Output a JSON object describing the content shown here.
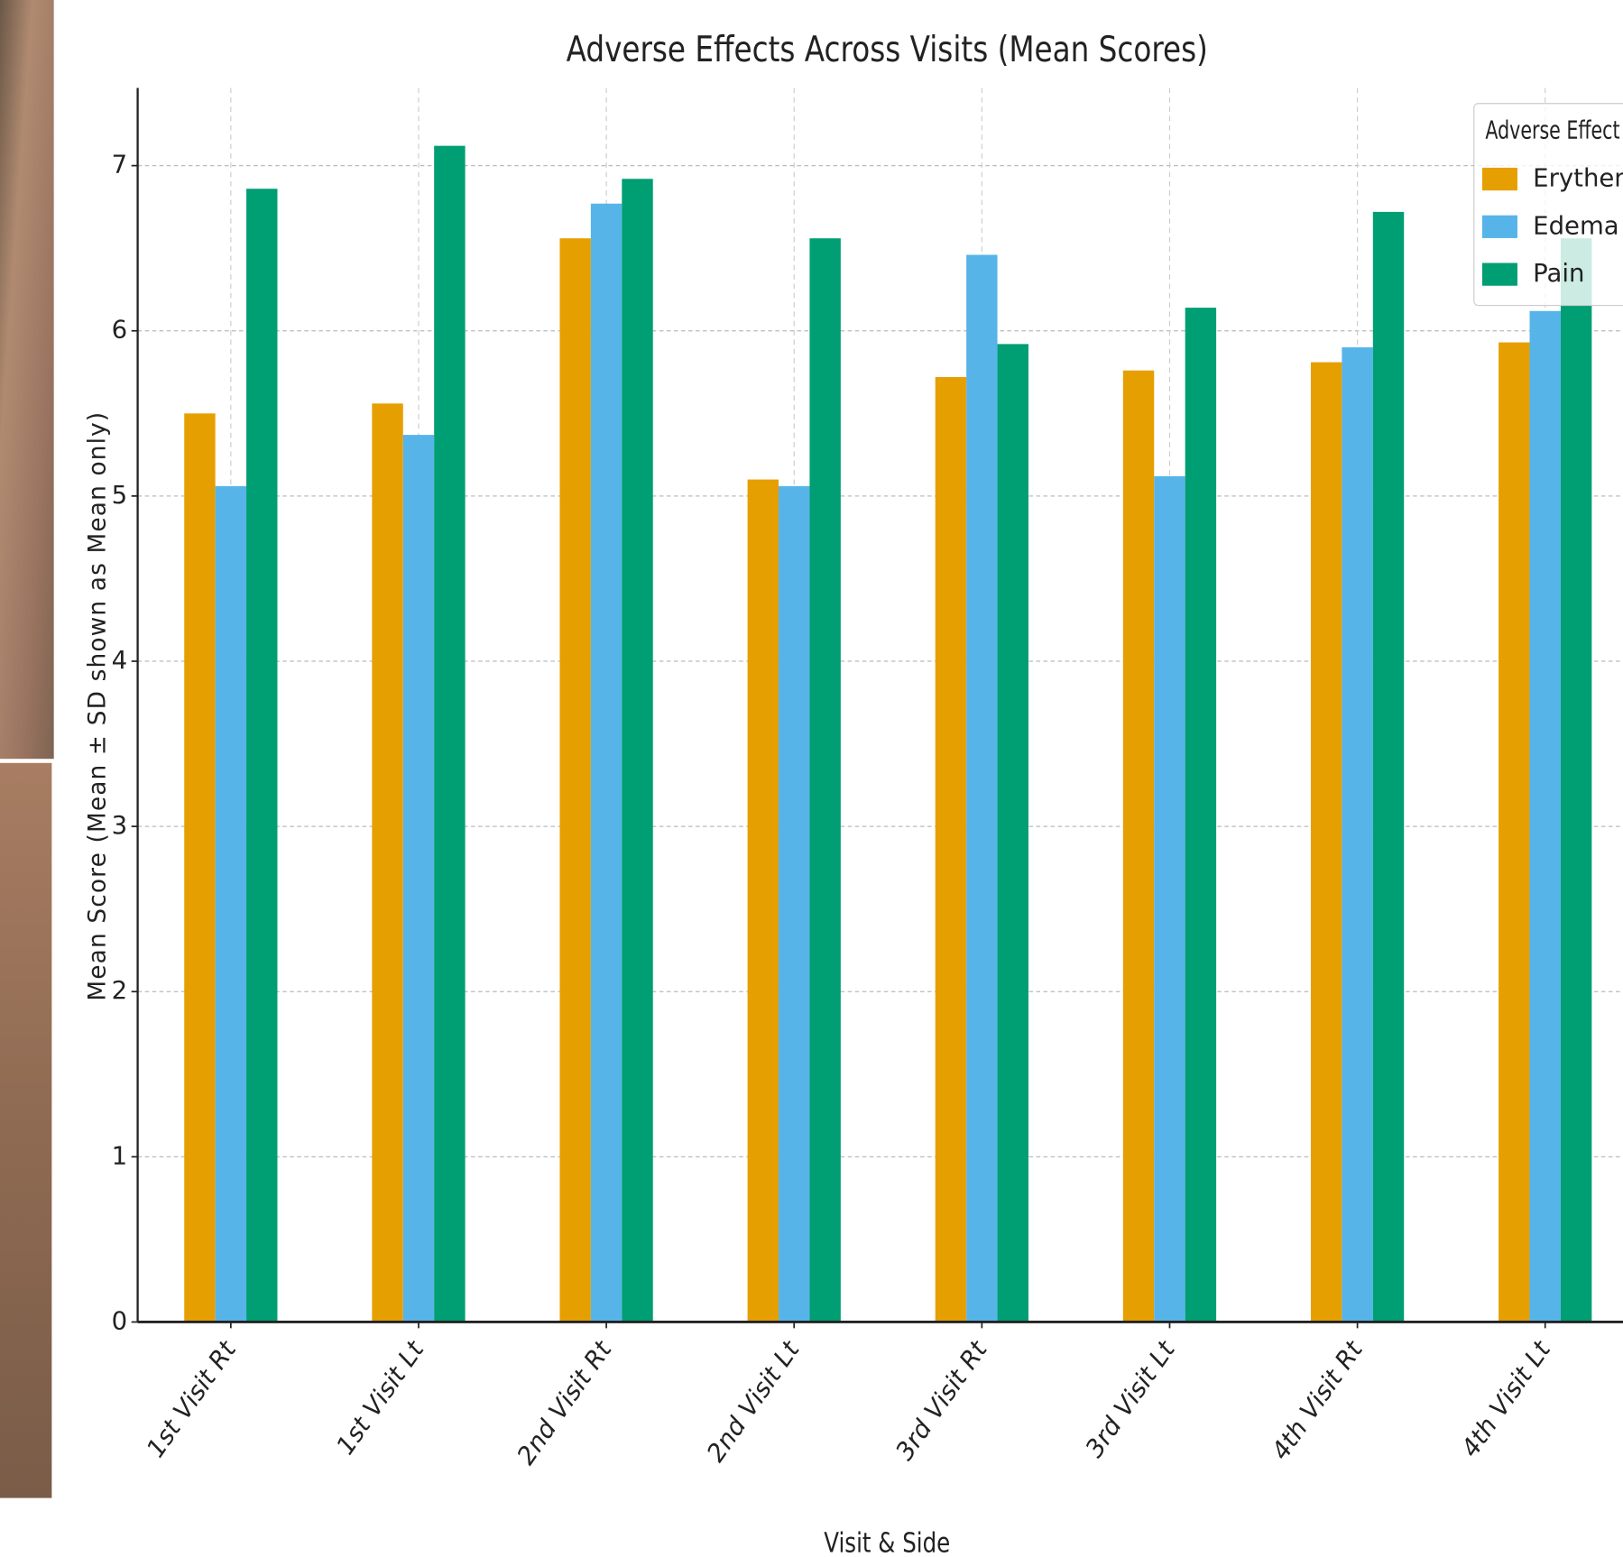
{
  "chart_data": {
    "type": "bar",
    "title": "Adverse Effects Across Visits (Mean Scores)",
    "x_label": "Visit & Side",
    "y_label": "Mean Score (Mean ± SD shown as Mean only)",
    "categories": [
      "1st Visit Rt",
      "1st Visit Lt",
      "2nd Visit Rt",
      "2nd Visit Lt",
      "3rd Visit Rt",
      "3rd Visit Lt",
      "4th Visit Rt",
      "4th Visit Lt"
    ],
    "series": [
      {
        "name": "Erythema",
        "color": "#e69f00",
        "values": [
          5.5,
          5.56,
          6.56,
          5.1,
          5.72,
          5.76,
          5.81,
          5.93
        ]
      },
      {
        "name": "Edema",
        "color": "#56b4e9",
        "values": [
          5.06,
          5.37,
          6.77,
          5.06,
          6.46,
          5.12,
          5.9,
          6.12
        ]
      },
      {
        "name": "Pain",
        "color": "#009e73",
        "values": [
          6.86,
          7.12,
          6.92,
          6.56,
          5.92,
          6.14,
          6.72,
          6.56
        ]
      }
    ],
    "legend_title": "Adverse Effect",
    "legend_position": "upper right",
    "ylim": [
      0,
      7.47
    ],
    "yticks": [
      0,
      1,
      2,
      3,
      4,
      5,
      6,
      7
    ],
    "grid": true
  }
}
